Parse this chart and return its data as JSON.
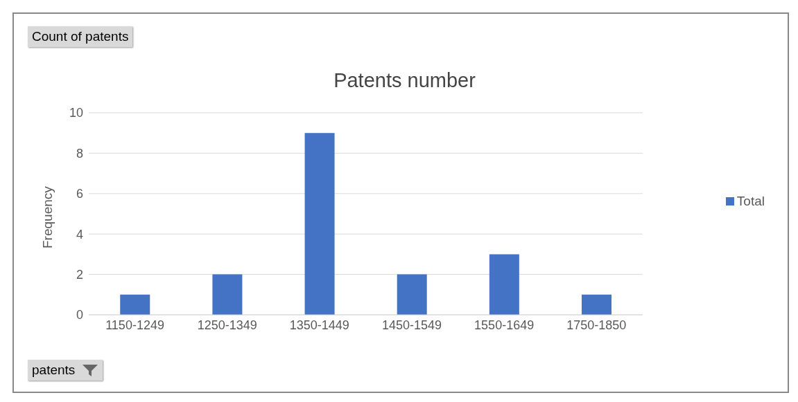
{
  "chart_data": {
    "type": "bar",
    "title": "Patents number",
    "ylabel": "Frequency",
    "categories": [
      "1150-1249",
      "1250-1349",
      "1350-1449",
      "1450-1549",
      "1550-1649",
      "1750-1850"
    ],
    "series": [
      {
        "name": "Total",
        "color": "#4472c4",
        "values": [
          1,
          2,
          9,
          2,
          3,
          1
        ]
      }
    ],
    "ylim": [
      0,
      10
    ],
    "yticks": [
      0,
      2,
      4,
      6,
      8,
      10
    ],
    "grid": "y",
    "legend": "right",
    "annotations": [
      "Count of patents",
      "patents"
    ]
  }
}
